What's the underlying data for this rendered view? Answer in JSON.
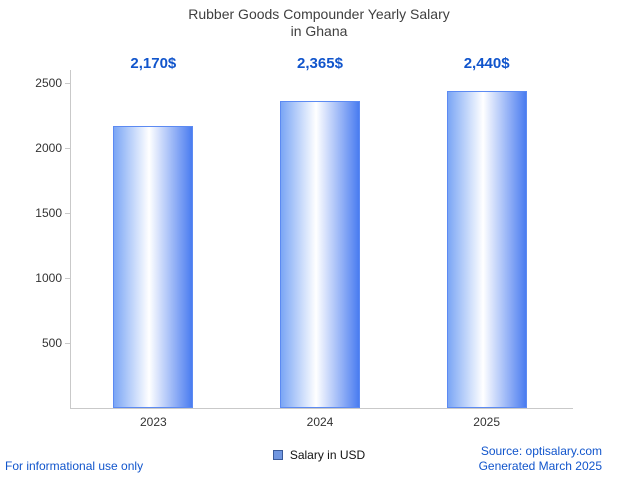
{
  "title": {
    "line1": "Rubber Goods Compounder Yearly Salary",
    "line2": "in Ghana"
  },
  "legend": {
    "label": "Salary in USD"
  },
  "footer": {
    "left": "For informational use only",
    "source": "Source: optisalary.com",
    "generated": "Generated March 2025"
  },
  "colors": {
    "accent_text": "#1155cc",
    "title_text": "#3f3f3f",
    "tick_text": "#333333",
    "axis": "#c9c9c9",
    "bar_left": "#7ba6f5",
    "bar_mid": "#ffffff",
    "bar_right": "#4a7cf0",
    "bar_border": "#5c8af2",
    "legend_swatch": "#7096e0",
    "legend_border": "#3a5a9a"
  },
  "chart_data": {
    "type": "bar",
    "title": "Rubber Goods Compounder Yearly Salary in Ghana",
    "categories": [
      "2023",
      "2024",
      "2025"
    ],
    "values": [
      2170,
      2365,
      2440
    ],
    "value_labels": [
      "2,170$",
      "2,365$",
      "2,440$"
    ],
    "series_name": "Salary in USD",
    "xlabel": "",
    "ylabel": "",
    "ylim": [
      0,
      2500
    ],
    "yticks": [
      500,
      1000,
      1500,
      2000,
      2500
    ],
    "grid": false,
    "legend_position": "bottom"
  }
}
